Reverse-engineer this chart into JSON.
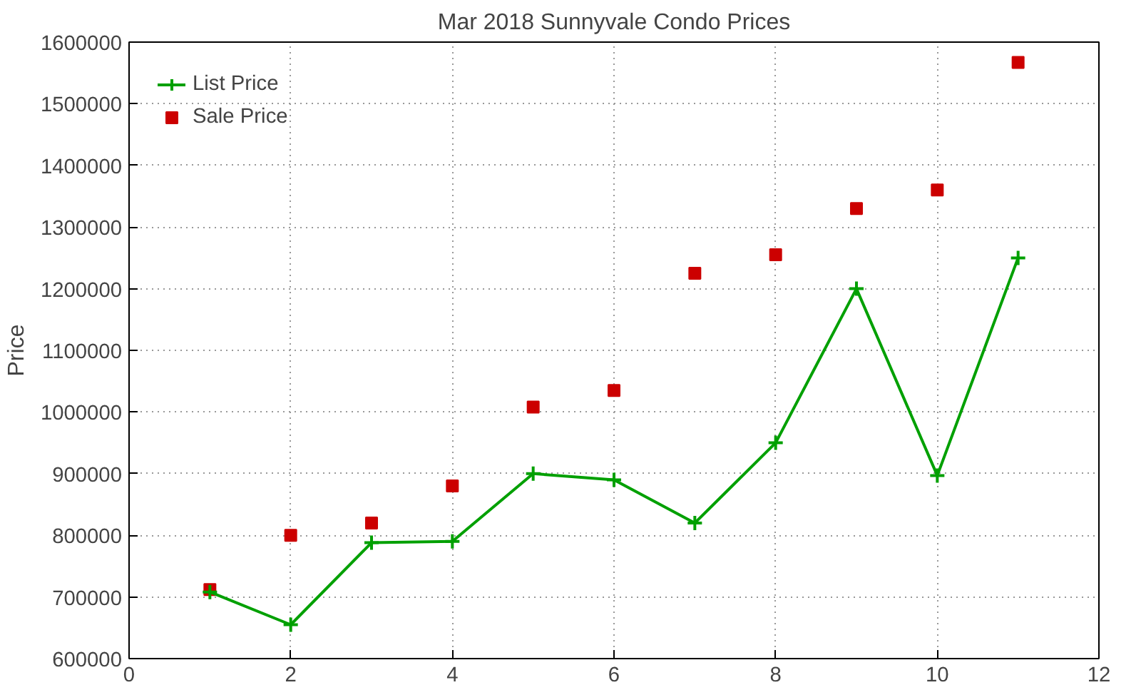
{
  "chart_data": {
    "type": "line",
    "title": "Mar 2018 Sunnyvale Condo Prices",
    "ylabel": "Price",
    "x": [
      1,
      2,
      3,
      4,
      5,
      6,
      7,
      8,
      9,
      10,
      11
    ],
    "series": [
      {
        "name": "List Price",
        "color": "#00a000",
        "values": [
          708000,
          655000,
          788000,
          790000,
          900000,
          890000,
          820000,
          950000,
          1200000,
          897000,
          1250000
        ],
        "marker": "cross"
      },
      {
        "name": "Sale Price",
        "color": "#cc0000",
        "values": [
          712000,
          800000,
          820000,
          880000,
          1008000,
          1035000,
          1225000,
          1255000,
          1330000,
          1360000,
          1567000
        ],
        "marker": "square",
        "type": "scatter"
      }
    ],
    "xlim": [
      0,
      12
    ],
    "xticks": [
      0,
      2,
      4,
      6,
      8,
      10,
      12
    ],
    "ylim": [
      600000,
      1600000
    ],
    "yticks": [
      600000,
      700000,
      800000,
      900000,
      1000000,
      1100000,
      1200000,
      1300000,
      1400000,
      1500000,
      1600000
    ],
    "grid": true,
    "legend": "top left"
  }
}
